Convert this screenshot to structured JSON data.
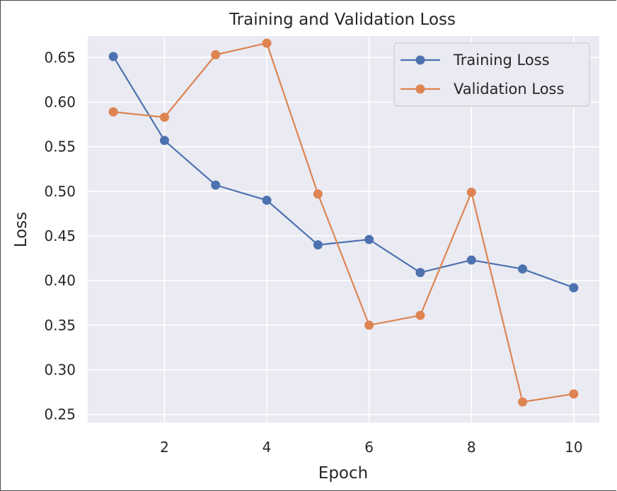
{
  "chart_data": {
    "type": "line",
    "title": "Training and Validation Loss",
    "xlabel": "Epoch",
    "ylabel": "Loss",
    "x": [
      1,
      2,
      3,
      4,
      5,
      6,
      7,
      8,
      9,
      10
    ],
    "xlim": [
      0.5,
      10.5
    ],
    "ylim": [
      0.241,
      0.674
    ],
    "xticks": [
      2,
      4,
      6,
      8,
      10
    ],
    "xtick_labels": [
      "2",
      "4",
      "6",
      "8",
      "10"
    ],
    "yticks": [
      0.25,
      0.3,
      0.35,
      0.4,
      0.45,
      0.5,
      0.55,
      0.6,
      0.65
    ],
    "ytick_labels": [
      "0.25",
      "0.30",
      "0.35",
      "0.40",
      "0.45",
      "0.50",
      "0.55",
      "0.60",
      "0.65"
    ],
    "grid": true,
    "legend_position": "top-right",
    "series": [
      {
        "name": "Training Loss",
        "color": "#4c72b0",
        "values": [
          0.651,
          0.557,
          0.507,
          0.49,
          0.44,
          0.446,
          0.409,
          0.423,
          0.413,
          0.392
        ]
      },
      {
        "name": "Validation Loss",
        "color": "#dd8452",
        "values": [
          0.589,
          0.583,
          0.653,
          0.666,
          0.497,
          0.35,
          0.361,
          0.499,
          0.264,
          0.273
        ]
      }
    ]
  },
  "colors": {
    "plot_background": "#eaeaf2",
    "grid": "#ffffff",
    "legend_background": "#eaeaf2",
    "legend_border": "#cccccc"
  }
}
